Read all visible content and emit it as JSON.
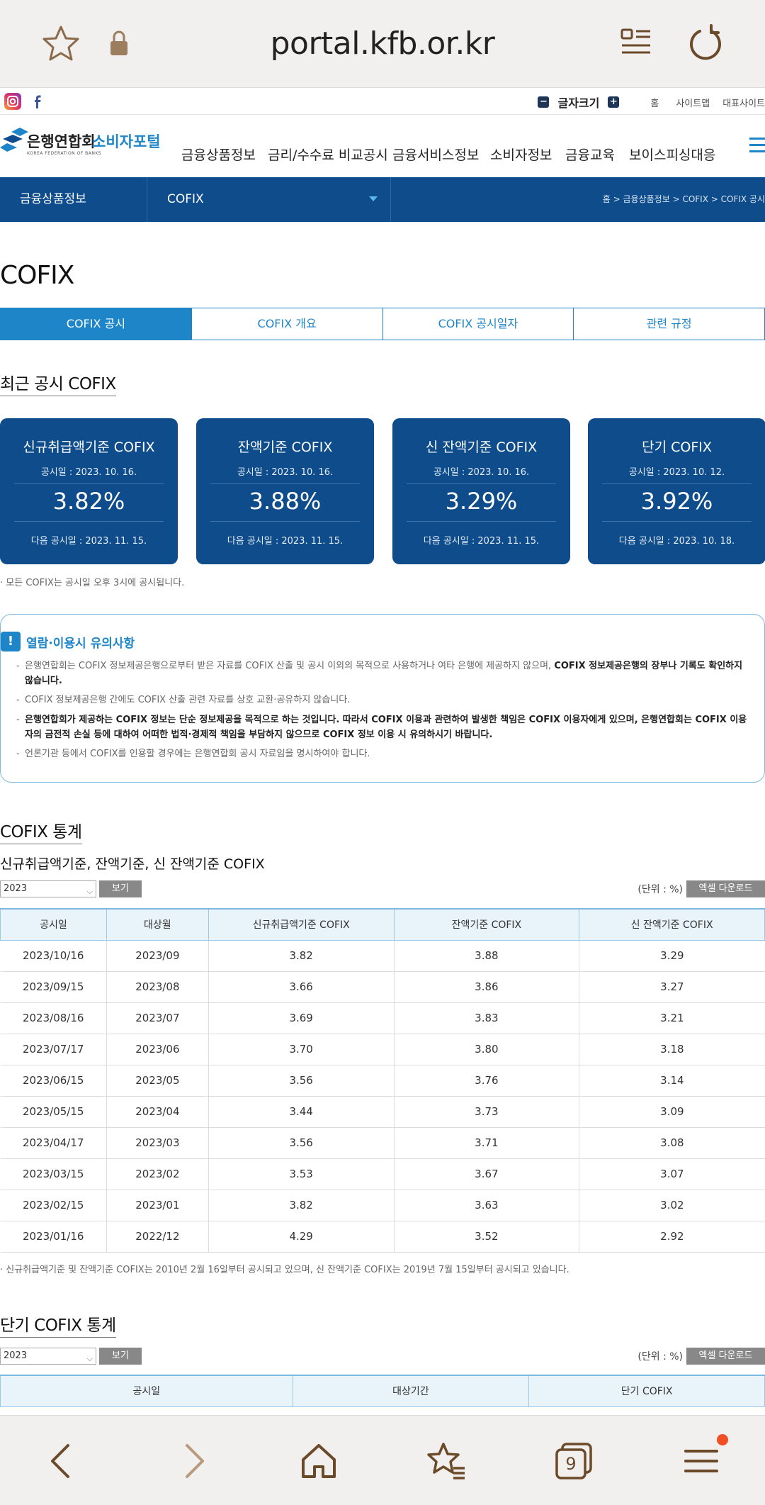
{
  "browser": {
    "url": "portal.kfb.or.kr",
    "tab_count": "9",
    "icons": [
      "star-icon",
      "lock-icon",
      "reader-mode-icon",
      "refresh-icon"
    ]
  },
  "util": {
    "font_size_label": "글자크기",
    "home": "홈",
    "sitemap": "사이트맵",
    "rep_site": "대표사이트"
  },
  "header": {
    "logo_name": "은행연합회",
    "logo_sub": "KOREA FEDERATION OF BANKS",
    "portal": "소비자포털",
    "menu": [
      "금융상품정보",
      "금리/수수료 비교공시",
      "금융서비스정보",
      "소비자정보",
      "금융교육",
      "보이스피싱대응"
    ]
  },
  "subnav": {
    "depth1": "금융상품정보",
    "depth2": "COFIX",
    "breadcrumb": "홈 > 금융상품정보 > COFIX > COFIX 공시"
  },
  "page_title": "COFIX",
  "tabs": [
    "COFIX 공시",
    "COFIX 개요",
    "COFIX 공시일자",
    "관련 규정"
  ],
  "recent_title": "최근 공시 COFIX",
  "cards": [
    {
      "title": "신규취급액기준 COFIX",
      "date": "공시일 : 2023. 10. 16.",
      "value": "3.82%",
      "next": "다음 공시일 : 2023. 11. 15."
    },
    {
      "title": "잔액기준 COFIX",
      "date": "공시일 : 2023. 10. 16.",
      "value": "3.88%",
      "next": "다음 공시일 : 2023. 11. 15."
    },
    {
      "title": "신 잔액기준 COFIX",
      "date": "공시일 : 2023. 10. 16.",
      "value": "3.29%",
      "next": "다음 공시일 : 2023. 11. 15."
    },
    {
      "title": "단기 COFIX",
      "date": "공시일 : 2023. 10. 12.",
      "value": "3.92%",
      "next": "다음 공시일 : 2023. 10. 18."
    }
  ],
  "cards_note": "· 모든 COFIX는 공시일 오후 3시에 공시됩니다.",
  "notice": {
    "title": "열람·이용시 유의사항",
    "items": [
      {
        "text": "은행연합회는 COFIX 정보제공은행으로부터 받은 자료를 COFIX 산출 및 공시 이외의 목적으로 사용하거나 여타 은행에 제공하지 않으며, ",
        "bold": "COFIX 정보제공은행의 장부나 기록도 확인하지 않습니다."
      },
      {
        "text": "COFIX 정보제공은행 간에도 COFIX 산출 관련 자료를 상호 교환·공유하지 않습니다.",
        "bold": ""
      },
      {
        "text": "",
        "bold": "은행연합회가 제공하는 COFIX 정보는 단순 정보제공을 목적으로 하는 것입니다. 따라서 COFIX 이용과 관련하여 발생한 책임은 COFIX 이용자에게 있으며, 은행연합회는 COFIX 이용자의 금전적 손실 등에 대하여 어떠한 법적·경제적 책임을 부담하지 않으므로 COFIX 정보 이용 시 유의하시기 바랍니다."
      },
      {
        "text": "언론기관 등에서 COFIX를 인용할 경우에는 은행연합회 공시 자료임을 명시하여야 합니다.",
        "bold": ""
      }
    ]
  },
  "stats": {
    "title": "COFIX 통계",
    "subtitle": "신규취급액기준, 잔액기준, 신 잔액기준 COFIX",
    "year": "2023",
    "view_btn": "보기",
    "unit": "(단위 : %)",
    "excel_btn": "엑셀 다운로드",
    "headers": [
      "공시일",
      "대상월",
      "신규취급액기준 COFIX",
      "잔액기준 COFIX",
      "신 잔액기준 COFIX"
    ],
    "rows": [
      [
        "2023/10/16",
        "2023/09",
        "3.82",
        "3.88",
        "3.29"
      ],
      [
        "2023/09/15",
        "2023/08",
        "3.66",
        "3.86",
        "3.27"
      ],
      [
        "2023/08/16",
        "2023/07",
        "3.69",
        "3.83",
        "3.21"
      ],
      [
        "2023/07/17",
        "2023/06",
        "3.70",
        "3.80",
        "3.18"
      ],
      [
        "2023/06/15",
        "2023/05",
        "3.56",
        "3.76",
        "3.14"
      ],
      [
        "2023/05/15",
        "2023/04",
        "3.44",
        "3.73",
        "3.09"
      ],
      [
        "2023/04/17",
        "2023/03",
        "3.56",
        "3.71",
        "3.08"
      ],
      [
        "2023/03/15",
        "2023/02",
        "3.53",
        "3.67",
        "3.07"
      ],
      [
        "2023/02/15",
        "2023/01",
        "3.82",
        "3.63",
        "3.02"
      ],
      [
        "2023/01/16",
        "2022/12",
        "4.29",
        "3.52",
        "2.92"
      ]
    ],
    "note": "· 신규취급액기준 및 잔액기준 COFIX는 2010년 2월 16일부터 공시되고 있으며, 신 잔액기준 COFIX는 2019년 7월 15일부터 공시되고 있습니다."
  },
  "short_stats": {
    "title": "단기 COFIX 통계",
    "year": "2023",
    "view_btn": "보기",
    "unit": "(단위 : %)",
    "excel_btn": "엑셀 다운로드",
    "headers": [
      "공시일",
      "대상기간",
      "단기 COFIX"
    ]
  },
  "colors": {
    "navy": "#0e4c8b",
    "accent": "#1e86c8",
    "badge": "#f04e23"
  }
}
